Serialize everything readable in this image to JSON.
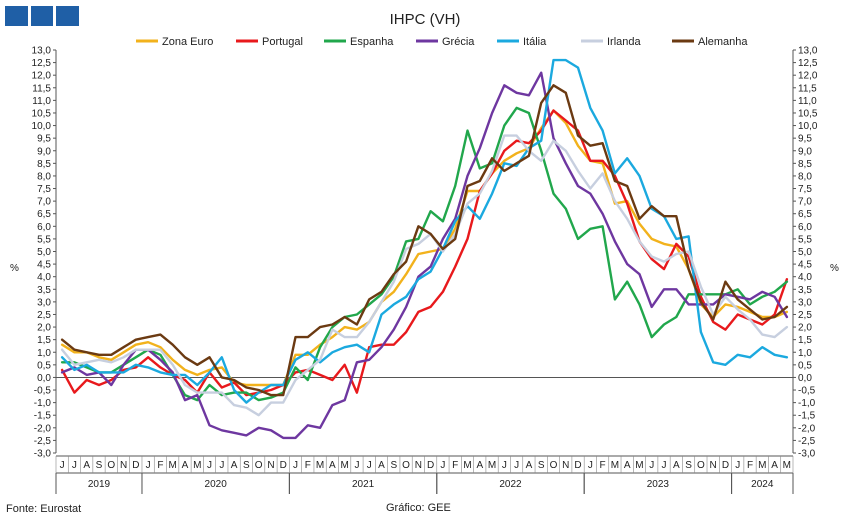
{
  "chart_data": {
    "type": "line",
    "title": "IHPC (VH)",
    "ylabel_left": "%",
    "ylabel_right": "%",
    "ylim": [
      -3.0,
      13.0
    ],
    "yticks": [
      "13,0",
      "12,5",
      "12,0",
      "11,5",
      "11,0",
      "10,5",
      "10,0",
      "9,5",
      "9,0",
      "8,5",
      "8,0",
      "7,5",
      "7,0",
      "6,5",
      "6,0",
      "5,5",
      "5,0",
      "4,5",
      "4,0",
      "3,5",
      "3,0",
      "2,5",
      "2,0",
      "1,5",
      "1,0",
      "0,5",
      "0,0",
      "-0,5",
      "-1,0",
      "-1,5",
      "-2,0",
      "-2,5",
      "-3,0"
    ],
    "month_labels": [
      "J",
      "J",
      "A",
      "S",
      "O",
      "N",
      "D",
      "J",
      "F",
      "M",
      "A",
      "M",
      "J",
      "J",
      "A",
      "S",
      "O",
      "N",
      "D",
      "J",
      "F",
      "M",
      "A",
      "M",
      "J",
      "J",
      "A",
      "S",
      "O",
      "N",
      "D",
      "J",
      "F",
      "M",
      "A",
      "M",
      "J",
      "J",
      "A",
      "S",
      "O",
      "N",
      "D",
      "J",
      "F",
      "M",
      "A",
      "M",
      "J",
      "J",
      "A",
      "S",
      "O",
      "N",
      "D",
      "J",
      "F",
      "M",
      "A",
      "M"
    ],
    "years": [
      {
        "label": "2019",
        "start": 0,
        "end": 6
      },
      {
        "label": "2020",
        "start": 7,
        "end": 18
      },
      {
        "label": "2021",
        "start": 19,
        "end": 30
      },
      {
        "label": "2022",
        "start": 31,
        "end": 42
      },
      {
        "label": "2023",
        "start": 43,
        "end": 54
      },
      {
        "label": "2024",
        "start": 55,
        "end": 59
      }
    ],
    "legend_position": "top",
    "grid": false,
    "series": [
      {
        "name": "Zona Euro",
        "color": "#f2b21c",
        "values": [
          1.3,
          1.0,
          1.0,
          0.8,
          0.7,
          1.0,
          1.3,
          1.4,
          1.2,
          0.7,
          0.3,
          0.1,
          0.3,
          0.4,
          -0.2,
          -0.3,
          -0.3,
          -0.3,
          -0.3,
          0.9,
          0.9,
          1.3,
          1.6,
          2.0,
          1.9,
          2.2,
          3.0,
          3.4,
          4.1,
          4.9,
          5.0,
          5.1,
          5.9,
          7.4,
          7.4,
          8.1,
          8.6,
          8.9,
          9.1,
          9.9,
          10.6,
          10.1,
          9.2,
          8.6,
          8.5,
          6.9,
          7.0,
          6.1,
          5.5,
          5.3,
          5.2,
          4.3,
          2.9,
          2.4,
          2.9,
          2.8,
          2.6,
          2.4,
          2.4,
          2.6
        ]
      },
      {
        "name": "Portugal",
        "color": "#e8191c",
        "values": [
          0.3,
          -0.6,
          -0.1,
          -0.3,
          -0.1,
          0.3,
          0.4,
          0.8,
          0.4,
          0.1,
          -0.1,
          -0.6,
          0.2,
          -0.4,
          -0.2,
          -0.7,
          -0.6,
          -0.5,
          -0.3,
          0.2,
          0.3,
          0.1,
          -0.1,
          0.5,
          -0.6,
          1.2,
          1.3,
          1.3,
          1.8,
          2.6,
          2.8,
          3.4,
          4.4,
          5.5,
          7.4,
          8.1,
          9.0,
          9.4,
          9.3,
          9.8,
          10.6,
          10.2,
          9.8,
          8.6,
          8.6,
          8.0,
          6.9,
          5.4,
          4.7,
          4.3,
          5.3,
          4.8,
          3.2,
          2.2,
          1.9,
          2.5,
          2.3,
          2.1,
          2.5,
          3.9
        ]
      },
      {
        "name": "Espanha",
        "color": "#21a74c",
        "values": [
          0.6,
          0.6,
          0.4,
          0.2,
          0.2,
          0.5,
          0.8,
          1.1,
          0.9,
          0.1,
          -0.7,
          -0.9,
          -0.3,
          -0.7,
          -0.6,
          -0.6,
          -0.9,
          -0.8,
          -0.6,
          0.4,
          -0.1,
          1.2,
          2.0,
          2.4,
          2.5,
          2.9,
          3.3,
          4.0,
          5.4,
          5.5,
          6.6,
          6.2,
          7.6,
          9.8,
          8.3,
          8.5,
          10.0,
          10.7,
          10.5,
          9.0,
          7.3,
          6.7,
          5.5,
          5.9,
          6.0,
          3.1,
          3.8,
          2.9,
          1.6,
          2.1,
          2.4,
          3.3,
          3.3,
          3.3,
          3.3,
          3.5,
          2.9,
          3.2,
          3.4,
          3.8
        ]
      },
      {
        "name": "Grécia",
        "color": "#6e37a0",
        "values": [
          0.2,
          0.4,
          0.1,
          0.2,
          -0.3,
          0.5,
          1.1,
          1.1,
          0.7,
          0.2,
          -0.9,
          -0.7,
          -1.9,
          -2.1,
          -2.2,
          -2.3,
          -2.0,
          -2.1,
          -2.4,
          -2.4,
          -1.9,
          -2.0,
          -1.1,
          -0.9,
          0.6,
          0.7,
          1.2,
          1.9,
          2.8,
          4.0,
          4.4,
          5.5,
          6.3,
          8.0,
          9.1,
          10.5,
          11.6,
          11.3,
          11.2,
          12.1,
          9.5,
          8.5,
          7.6,
          7.3,
          6.5,
          5.4,
          4.5,
          4.1,
          2.8,
          3.5,
          3.5,
          2.9,
          2.9,
          2.9,
          3.3,
          3.2,
          3.1,
          3.4,
          3.2,
          2.4
        ]
      },
      {
        "name": "Itália",
        "color": "#1ba9df",
        "values": [
          0.8,
          0.3,
          0.5,
          0.2,
          0.2,
          0.2,
          0.5,
          0.4,
          0.2,
          0.1,
          0.1,
          -0.3,
          0.2,
          0.8,
          -0.5,
          -1.0,
          -0.6,
          -0.3,
          -0.3,
          0.7,
          1.0,
          0.6,
          1.0,
          1.2,
          1.3,
          1.0,
          2.5,
          2.9,
          3.2,
          3.9,
          4.2,
          5.1,
          6.2,
          6.8,
          6.3,
          7.3,
          8.5,
          8.4,
          9.1,
          9.4,
          12.6,
          12.6,
          12.3,
          10.7,
          9.8,
          8.1,
          8.7,
          8.0,
          6.7,
          6.4,
          5.5,
          5.6,
          1.8,
          0.6,
          0.5,
          0.9,
          0.8,
          1.2,
          0.9,
          0.8
        ]
      },
      {
        "name": "Irlanda",
        "color": "#c7cfdf",
        "values": [
          1.1,
          0.5,
          0.6,
          0.7,
          0.6,
          0.8,
          1.1,
          1.1,
          1.1,
          0.5,
          -0.3,
          -0.6,
          -0.6,
          -0.6,
          -1.1,
          -1.2,
          -1.5,
          -1.0,
          -1.0,
          -0.1,
          0.3,
          0.7,
          1.9,
          1.6,
          1.6,
          2.2,
          3.0,
          3.8,
          5.1,
          5.3,
          5.7,
          5.0,
          5.7,
          6.9,
          7.3,
          8.2,
          9.6,
          9.6,
          9.0,
          8.6,
          9.4,
          9.0,
          8.2,
          7.5,
          8.1,
          7.0,
          6.3,
          5.4,
          4.8,
          4.6,
          4.9,
          5.0,
          3.6,
          2.5,
          3.2,
          2.7,
          2.3,
          1.7,
          1.6,
          2.0
        ]
      },
      {
        "name": "Alemanha",
        "color": "#6b3a12",
        "values": [
          1.5,
          1.1,
          1.0,
          0.9,
          0.9,
          1.2,
          1.5,
          1.6,
          1.7,
          1.3,
          0.8,
          0.5,
          0.8,
          0.0,
          -0.1,
          -0.4,
          -0.5,
          -0.7,
          -0.7,
          1.6,
          1.6,
          2.0,
          2.1,
          2.4,
          2.1,
          3.1,
          3.4,
          4.1,
          4.6,
          6.0,
          5.7,
          5.1,
          5.5,
          7.6,
          7.8,
          8.7,
          8.2,
          8.5,
          8.8,
          10.9,
          11.6,
          11.3,
          9.6,
          9.2,
          9.3,
          7.8,
          7.6,
          6.3,
          6.8,
          6.4,
          6.4,
          4.3,
          3.0,
          2.3,
          3.8,
          3.1,
          2.7,
          2.3,
          2.4,
          2.8
        ]
      }
    ]
  },
  "footer": {
    "source": "Fonte: Eurostat",
    "credit": "Gráfico: GEE"
  }
}
